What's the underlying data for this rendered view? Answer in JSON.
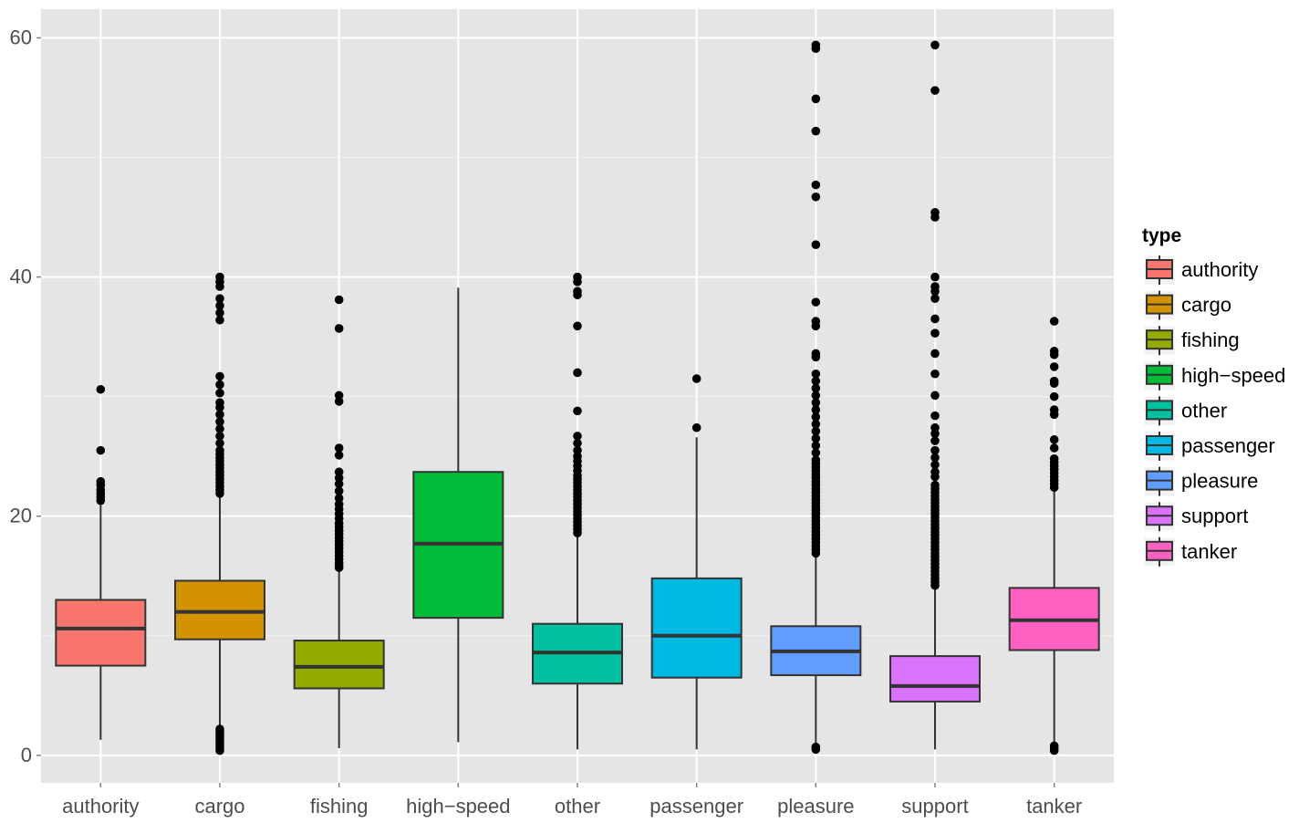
{
  "chart_data": {
    "type": "box",
    "title": "",
    "xlabel": "",
    "ylabel": "",
    "ylim": [
      -2.3,
      62.4
    ],
    "yticks": [
      0,
      20,
      40,
      60
    ],
    "grid": true,
    "legend": {
      "title": "type",
      "position": "right"
    },
    "categories": [
      "authority",
      "cargo",
      "fishing",
      "high−speed",
      "other",
      "passenger",
      "pleasure",
      "support",
      "tanker"
    ],
    "series": [
      {
        "name": "authority",
        "color": "#F8766D",
        "q1": 7.5,
        "median": 10.6,
        "q3": 13.0,
        "whisker_low": 1.3,
        "whisker_high": 21.0,
        "outliers": [
          21.3,
          21.6,
          21.9,
          22.2,
          22.6,
          22.9,
          25.5,
          30.6
        ]
      },
      {
        "name": "cargo",
        "color": "#D39200",
        "q1": 9.7,
        "median": 12.0,
        "q3": 14.6,
        "whisker_low": 2.4,
        "whisker_high": 21.6,
        "outliers": [
          0.4,
          0.6,
          0.8,
          1.0,
          1.2,
          1.4,
          1.6,
          1.8,
          2.0,
          2.2,
          21.9,
          22.2,
          22.5,
          22.8,
          23.1,
          23.4,
          23.7,
          24.0,
          24.3,
          24.6,
          24.9,
          25.2,
          25.5,
          26.1,
          26.7,
          27.3,
          27.9,
          28.5,
          29.1,
          29.5,
          30.3,
          31.0,
          31.7,
          36.4,
          37.0,
          37.6,
          38.2,
          39.2,
          39.6,
          40.0
        ]
      },
      {
        "name": "fishing",
        "color": "#93AA00",
        "q1": 5.6,
        "median": 7.4,
        "q3": 9.6,
        "whisker_low": 0.6,
        "whisker_high": 15.6,
        "outliers": [
          15.7,
          15.9,
          16.1,
          16.4,
          16.7,
          17.0,
          17.3,
          17.6,
          17.9,
          18.2,
          18.5,
          18.8,
          19.1,
          19.4,
          19.8,
          20.2,
          20.6,
          21.0,
          21.5,
          22.1,
          22.7,
          23.2,
          23.7,
          25.1,
          25.7,
          29.6,
          30.1,
          35.7,
          38.1
        ]
      },
      {
        "name": "high−speed",
        "color": "#00BA38",
        "q1": 11.5,
        "median": 17.7,
        "q3": 23.7,
        "whisker_low": 1.1,
        "whisker_high": 39.1,
        "outliers": []
      },
      {
        "name": "other",
        "color": "#00C19F",
        "q1": 6.0,
        "median": 8.6,
        "q3": 11.0,
        "whisker_low": 0.5,
        "whisker_high": 18.4,
        "outliers": [
          18.6,
          18.9,
          19.2,
          19.5,
          19.8,
          20.1,
          20.4,
          20.7,
          21.0,
          21.3,
          21.6,
          21.9,
          22.2,
          22.5,
          22.8,
          23.1,
          23.4,
          23.8,
          24.2,
          24.6,
          25.0,
          25.5,
          26.1,
          26.7,
          28.8,
          32.0,
          35.9,
          38.5,
          38.8,
          39.6,
          40.0
        ]
      },
      {
        "name": "passenger",
        "color": "#00B9E3",
        "q1": 6.5,
        "median": 10.0,
        "q3": 14.8,
        "whisker_low": 0.5,
        "whisker_high": 26.6,
        "outliers": [
          27.4,
          31.5
        ]
      },
      {
        "name": "pleasure",
        "color": "#619CFF",
        "q1": 6.7,
        "median": 8.7,
        "q3": 10.8,
        "whisker_low": 0.9,
        "whisker_high": 16.7,
        "outliers": [
          0.5,
          0.7,
          16.9,
          17.2,
          17.5,
          17.8,
          18.1,
          18.4,
          18.7,
          19.0,
          19.3,
          19.6,
          19.9,
          20.2,
          20.5,
          20.8,
          21.1,
          21.4,
          21.7,
          22.0,
          22.3,
          22.6,
          22.9,
          23.2,
          23.5,
          23.8,
          24.1,
          24.4,
          24.7,
          25.3,
          25.9,
          26.5,
          27.1,
          27.7,
          28.3,
          28.9,
          29.5,
          30.1,
          30.7,
          31.3,
          31.9,
          33.3,
          33.6,
          35.9,
          36.3,
          37.9,
          42.7,
          46.7,
          47.7,
          52.2,
          54.9,
          59.1,
          59.4
        ]
      },
      {
        "name": "support",
        "color": "#DB72FB",
        "q1": 4.5,
        "median": 5.8,
        "q3": 8.3,
        "whisker_low": 0.5,
        "whisker_high": 14.0,
        "outliers": [
          14.2,
          14.5,
          14.8,
          15.1,
          15.4,
          15.7,
          16.0,
          16.3,
          16.6,
          16.9,
          17.2,
          17.5,
          17.8,
          18.1,
          18.4,
          18.7,
          19.0,
          19.3,
          19.6,
          19.9,
          20.2,
          20.5,
          20.8,
          21.1,
          21.4,
          21.7,
          22.0,
          22.3,
          22.6,
          23.3,
          23.7,
          24.3,
          24.9,
          25.5,
          26.3,
          26.9,
          27.4,
          28.4,
          30.1,
          31.9,
          33.6,
          35.3,
          36.5,
          38.2,
          38.8,
          39.2,
          40.0,
          45.0,
          45.4,
          55.6,
          59.4
        ]
      },
      {
        "name": "tanker",
        "color": "#FF61C3",
        "q1": 8.8,
        "median": 11.3,
        "q3": 14.0,
        "whisker_low": 1.1,
        "whisker_high": 22.1,
        "outliers": [
          0.4,
          0.6,
          0.8,
          22.4,
          22.7,
          23.0,
          23.3,
          23.6,
          23.9,
          24.2,
          24.5,
          24.8,
          25.7,
          26.4,
          28.5,
          28.9,
          30.0,
          31.1,
          31.3,
          32.5,
          33.5,
          33.8,
          36.3
        ]
      }
    ]
  }
}
